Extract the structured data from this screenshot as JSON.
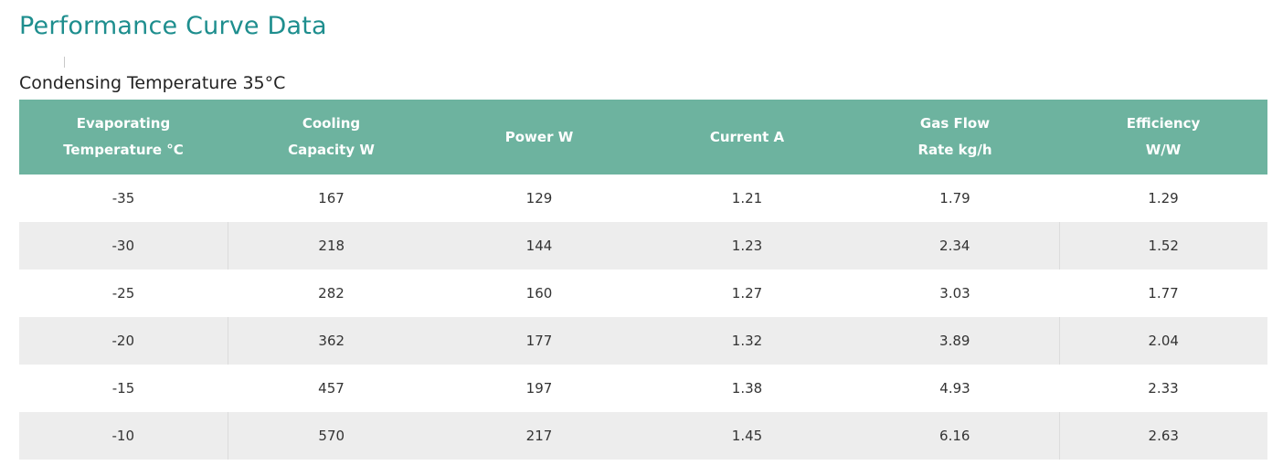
{
  "page": {
    "title": "Performance Curve Data",
    "subtitle": "Condensing Temperature 35°C"
  },
  "table": {
    "headers": [
      [
        "Evaporating",
        "Temperature °C"
      ],
      [
        "Cooling",
        "Capacity W"
      ],
      [
        "Power W"
      ],
      [
        "Current A"
      ],
      [
        "Gas Flow",
        "Rate kg/h"
      ],
      [
        "Efficiency",
        "W/W"
      ]
    ],
    "rows": [
      [
        "-35",
        "167",
        "129",
        "1.21",
        "1.79",
        "1.29"
      ],
      [
        "-30",
        "218",
        "144",
        "1.23",
        "2.34",
        "1.52"
      ],
      [
        "-25",
        "282",
        "160",
        "1.27",
        "3.03",
        "1.77"
      ],
      [
        "-20",
        "362",
        "177",
        "1.32",
        "3.89",
        "2.04"
      ],
      [
        "-15",
        "457",
        "197",
        "1.38",
        "4.93",
        "2.33"
      ],
      [
        "-10",
        "570",
        "217",
        "1.45",
        "6.16",
        "2.63"
      ]
    ]
  },
  "colors": {
    "title": "#1e8e8e",
    "header_bg": "#6db39f",
    "header_text": "#ffffff",
    "stripe": "#ededed"
  }
}
